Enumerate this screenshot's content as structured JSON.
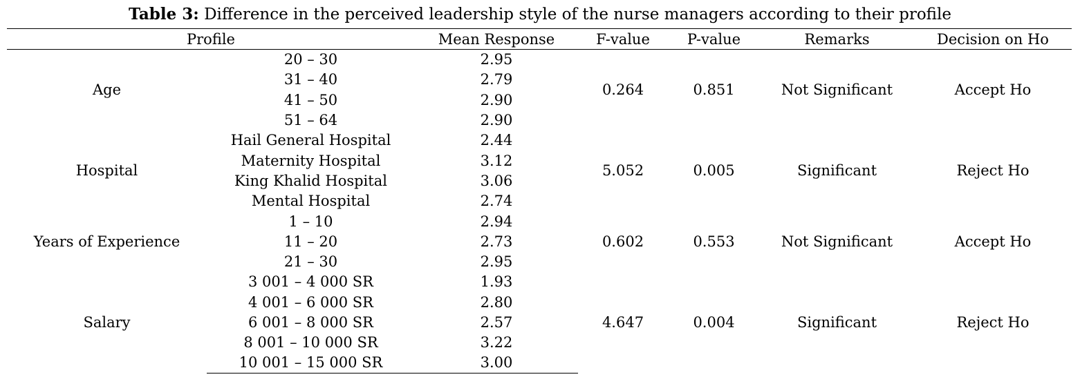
{
  "caption": {
    "label": "Table 3:",
    "text": " Difference in the perceived leadership style of the nurse managers according to their profile"
  },
  "columns": [
    "Profile",
    "Mean Response",
    "F-value",
    "P-value",
    "Remarks",
    "Decision on Ho"
  ],
  "groups": [
    {
      "profile": "Age",
      "f_value": "0.264",
      "p_value": "0.851",
      "remarks": "Not Significant",
      "decision": "Accept Ho",
      "rows": [
        {
          "category": "20 – 30",
          "mean": "2.95"
        },
        {
          "category": "31 – 40",
          "mean": "2.79"
        },
        {
          "category": "41 – 50",
          "mean": "2.90"
        },
        {
          "category": "51 – 64",
          "mean": "2.90"
        }
      ]
    },
    {
      "profile": "Hospital",
      "f_value": "5.052",
      "p_value": "0.005",
      "remarks": "Significant",
      "decision": "Reject Ho",
      "rows": [
        {
          "category": "Hail General Hospital",
          "mean": "2.44"
        },
        {
          "category": "Maternity Hospital",
          "mean": "3.12"
        },
        {
          "category": "King Khalid Hospital",
          "mean": "3.06"
        },
        {
          "category": "Mental Hospital",
          "mean": "2.74"
        }
      ]
    },
    {
      "profile": "Years of Experience",
      "f_value": "0.602",
      "p_value": "0.553",
      "remarks": "Not Significant",
      "decision": "Accept Ho",
      "rows": [
        {
          "category": "1 – 10",
          "mean": "2.94"
        },
        {
          "category": "11 – 20",
          "mean": "2.73"
        },
        {
          "category": "21 – 30",
          "mean": "2.95"
        }
      ]
    },
    {
      "profile": "Salary",
      "f_value": "4.647",
      "p_value": "0.004",
      "remarks": "Significant",
      "decision": "Reject Ho",
      "rows": [
        {
          "category": "3 001 – 4 000 SR",
          "mean": "1.93"
        },
        {
          "category": "4 001 – 6 000 SR",
          "mean": "2.80"
        },
        {
          "category": "6 001 – 8 000 SR",
          "mean": "2.57"
        },
        {
          "category": "8 001 – 10 000 SR",
          "mean": "3.22"
        },
        {
          "category": "10 001 – 15 000 SR",
          "mean": "3.00"
        }
      ]
    }
  ]
}
